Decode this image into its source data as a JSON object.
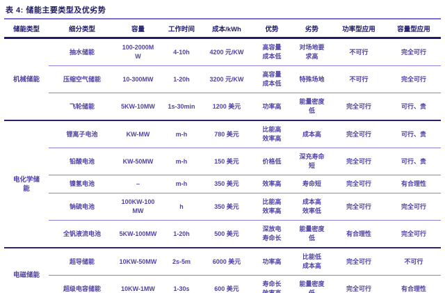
{
  "title": "表 4: 储能主要类型及优劣势",
  "colors": {
    "heading_navy": "#1f1a6b",
    "body_purple": "#4f43a5",
    "thin_separator": "#8d80d2",
    "thick_separator": "#2a2370",
    "title_underline": "#7c6ed0",
    "background": "#ffffff"
  },
  "table": {
    "headers": [
      "储能类型",
      "细分类型",
      "容量",
      "工作时间",
      "成本/kWh",
      "优势",
      "劣势",
      "功率型应用",
      "容量型应用"
    ],
    "groups": [
      {
        "category": "机械储能",
        "rows": [
          [
            "抽水储能",
            "100-2000M\nW",
            "4-10h",
            "4200 元/KW",
            "高容量\n成本低",
            "对场地要\n求高",
            "不可行",
            "完全可行"
          ],
          [
            "压缩空气储能",
            "10-300MW",
            "1-20h",
            "3200 元/KW",
            "高容量\n成本低",
            "特殊场地",
            "不可行",
            "完全可行"
          ],
          [
            "飞轮储能",
            "5KW-10MW",
            "1s-30min",
            "1200 美元",
            "功率高",
            "能量密度\n低",
            "完全可行",
            "可行、贵"
          ]
        ]
      },
      {
        "category": "电化学储\n能",
        "rows": [
          [
            "锂离子电池",
            "KW-MW",
            "m-h",
            "780 美元",
            "比能高\n效率高",
            "成本高",
            "完全可行",
            "可行、贵"
          ],
          [
            "铅酸电池",
            "KW-50MW",
            "m-h",
            "150 美元",
            "价格低",
            "深充寿命\n短",
            "完全可行",
            "可行、贵"
          ],
          [
            "镍氢电池",
            "–",
            "m-h",
            "350 美元",
            "效率高",
            "寿命短",
            "完全可行",
            "有合理性"
          ],
          [
            "钠硫电池",
            "100KW-100\nMW",
            "h",
            "350 美元",
            "比能高\n效率高",
            "成本高\n效率低",
            "完全可行",
            "完全可行"
          ],
          [
            "全钒液流电池",
            "5KW-100MW",
            "1-20h",
            "500 美元",
            "深放电\n寿命长",
            "能量密度\n低",
            "有合理性",
            "完全可行"
          ]
        ]
      },
      {
        "category": "电磁储能",
        "rows": [
          [
            "超导储能",
            "10KW-50MW",
            "2s-5m",
            "6000 美元",
            "功率高",
            "比能低\n成本高",
            "完全可行",
            "不可行"
          ],
          [
            "超级电容储能",
            "10KW-1MW",
            "1-30s",
            "600 美元",
            "寿命长\n效率高",
            "能量密度\n低",
            "完全可行",
            "有合理性"
          ]
        ]
      }
    ]
  }
}
